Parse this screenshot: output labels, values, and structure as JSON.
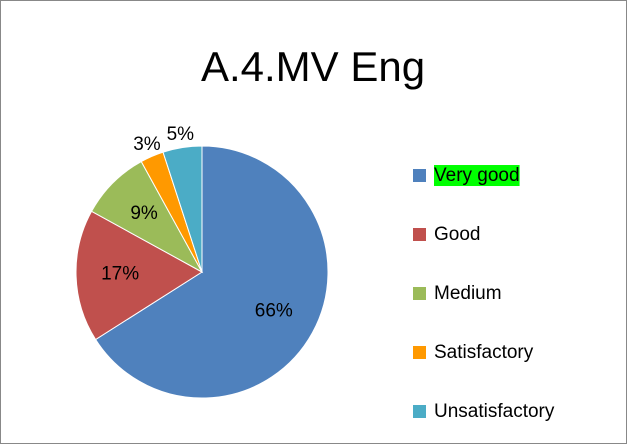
{
  "chart_data": {
    "type": "pie",
    "title": "A.4.MV Eng",
    "categories": [
      "Very good",
      "Good",
      "Medium",
      "Satisfactory",
      "Unsatisfactory"
    ],
    "values": [
      66,
      17,
      9,
      3,
      5
    ],
    "value_labels": [
      "66%",
      "17%",
      "9%",
      "3%",
      "5%"
    ],
    "colors": [
      "#4f81bd",
      "#c0504d",
      "#9bbb59",
      "#ff9900",
      "#4bacc6"
    ],
    "legend": "right",
    "legend_highlight": {
      "index": 0,
      "color": "#00ff00"
    }
  }
}
